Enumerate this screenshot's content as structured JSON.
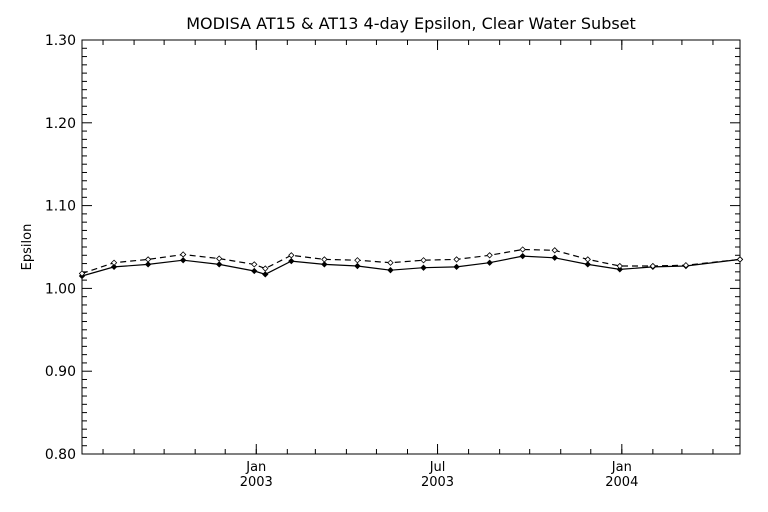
{
  "chart_data": {
    "type": "line",
    "title": "MODISA AT15 & AT13 4-day Epsilon, Clear Water Subset",
    "xlabel": "",
    "ylabel": "Epsilon",
    "ylim": [
      0.8,
      1.3
    ],
    "xlim": [
      "2002-07-11",
      "2004-04-28"
    ],
    "grid": false,
    "y_ticks": [
      "0.80",
      "0.90",
      "1.00",
      "1.10",
      "1.20",
      "1.30"
    ],
    "x_ticks": [
      {
        "date": "2003-01-01",
        "month": "Jan",
        "year": "2003"
      },
      {
        "date": "2003-07-01",
        "month": "Jul",
        "year": "2003"
      },
      {
        "date": "2004-01-01",
        "month": "Jan",
        "year": "2004"
      }
    ],
    "series": [
      {
        "line_style": "solid",
        "points": [
          {
            "x": "2002-07-11",
            "y": 1.015
          },
          {
            "x": "2002-08-12",
            "y": 1.026
          },
          {
            "x": "2002-09-15",
            "y": 1.029
          },
          {
            "x": "2002-10-20",
            "y": 1.034
          },
          {
            "x": "2002-11-25",
            "y": 1.029
          },
          {
            "x": "2002-12-30",
            "y": 1.021
          },
          {
            "x": "2003-01-10",
            "y": 1.017
          },
          {
            "x": "2003-02-05",
            "y": 1.033
          },
          {
            "x": "2003-03-10",
            "y": 1.029
          },
          {
            "x": "2003-04-12",
            "y": 1.027
          },
          {
            "x": "2003-05-15",
            "y": 1.022
          },
          {
            "x": "2003-06-17",
            "y": 1.025
          },
          {
            "x": "2003-07-20",
            "y": 1.026
          },
          {
            "x": "2003-08-22",
            "y": 1.031
          },
          {
            "x": "2003-09-24",
            "y": 1.039
          },
          {
            "x": "2003-10-26",
            "y": 1.037
          },
          {
            "x": "2003-11-28",
            "y": 1.029
          },
          {
            "x": "2003-12-30",
            "y": 1.023
          },
          {
            "x": "2004-02-01",
            "y": 1.026
          },
          {
            "x": "2004-03-05",
            "y": 1.027
          },
          {
            "x": "2004-04-28",
            "y": 1.035
          }
        ]
      },
      {
        "line_style": "dashed",
        "points": [
          {
            "x": "2002-07-11",
            "y": 1.018
          },
          {
            "x": "2002-08-12",
            "y": 1.031
          },
          {
            "x": "2002-09-15",
            "y": 1.035
          },
          {
            "x": "2002-10-20",
            "y": 1.041
          },
          {
            "x": "2002-11-25",
            "y": 1.036
          },
          {
            "x": "2002-12-30",
            "y": 1.029
          },
          {
            "x": "2003-01-10",
            "y": 1.024
          },
          {
            "x": "2003-02-05",
            "y": 1.04
          },
          {
            "x": "2003-03-10",
            "y": 1.035
          },
          {
            "x": "2003-04-12",
            "y": 1.034
          },
          {
            "x": "2003-05-15",
            "y": 1.031
          },
          {
            "x": "2003-06-17",
            "y": 1.034
          },
          {
            "x": "2003-07-20",
            "y": 1.035
          },
          {
            "x": "2003-08-22",
            "y": 1.04
          },
          {
            "x": "2003-09-24",
            "y": 1.047
          },
          {
            "x": "2003-10-26",
            "y": 1.046
          },
          {
            "x": "2003-11-28",
            "y": 1.035
          },
          {
            "x": "2003-12-30",
            "y": 1.027
          },
          {
            "x": "2004-02-01",
            "y": 1.027
          },
          {
            "x": "2004-03-05",
            "y": 1.028
          },
          {
            "x": "2004-04-28",
            "y": 1.035
          }
        ]
      }
    ]
  }
}
